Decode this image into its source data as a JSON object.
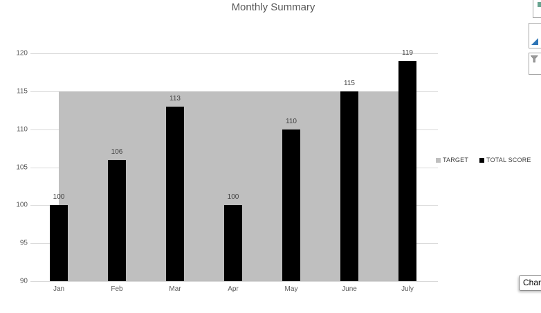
{
  "chart_data": {
    "type": "bar",
    "title": "Monthly Summary",
    "categories": [
      "Jan",
      "Feb",
      "Mar",
      "Apr",
      "May",
      "June",
      "July"
    ],
    "series": [
      {
        "name": "TARGET",
        "type": "area",
        "values": [
          115,
          115,
          115,
          115,
          115,
          115,
          115
        ],
        "color": "#bfbfbf"
      },
      {
        "name": "TOTAL SCORE",
        "type": "column",
        "values": [
          100,
          106,
          113,
          100,
          110,
          115,
          119
        ],
        "color": "#000000"
      }
    ],
    "data_labels": [
      "100",
      "106",
      "113",
      "100",
      "110",
      "115",
      "119"
    ],
    "y_ticks": [
      90,
      95,
      100,
      105,
      110,
      115,
      120
    ],
    "ylim": [
      90,
      120
    ],
    "xlabel": "",
    "ylabel": "",
    "grid": "horizontal",
    "legend_position": "right",
    "gridline_color": "#d9d9d9",
    "axis_text_color": "#595959",
    "label_text_color": "#404040"
  },
  "legend": {
    "items": [
      {
        "label": "TARGET",
        "color": "#bfbfbf"
      },
      {
        "label": "TOTAL SCORE",
        "color": "#000000"
      }
    ]
  },
  "side_toolbar": {
    "buttons": [
      {
        "name": "chart-elements",
        "icon": "plus-icon",
        "accent": "#68a490"
      },
      {
        "name": "chart-styles",
        "icon": "paintbrush-icon",
        "accent": "#2e75b6"
      },
      {
        "name": "chart-filters",
        "icon": "funnel-icon",
        "accent": "#7f7f7f"
      }
    ]
  },
  "tooltip": {
    "text": "Char"
  }
}
